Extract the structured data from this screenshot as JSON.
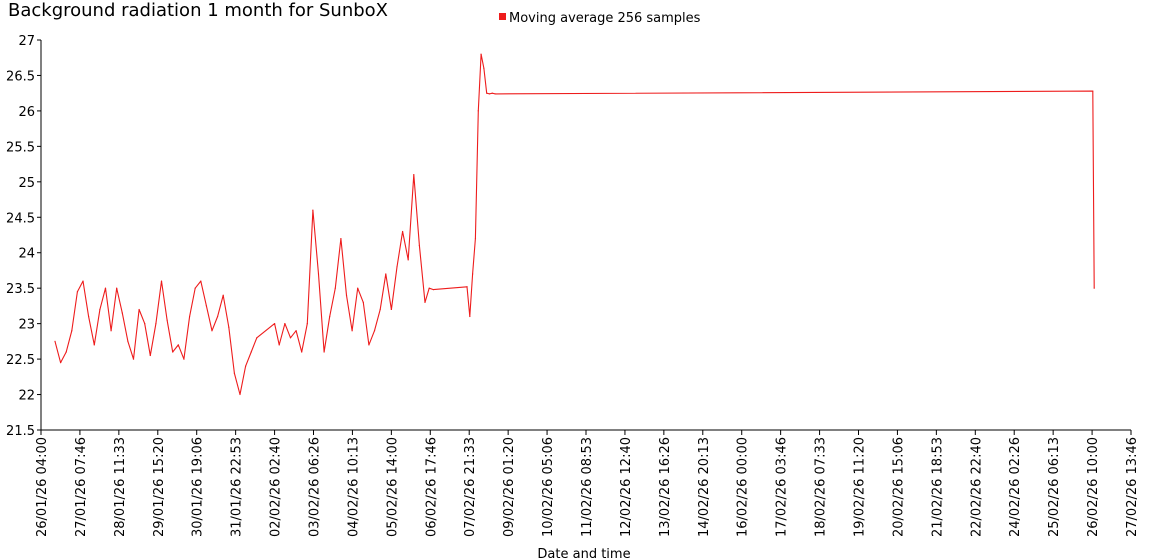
{
  "chart_data": {
    "type": "line",
    "title": "Background radiation 1 month for SunboX",
    "xlabel": "Date and time",
    "ylabel": "",
    "ylim": [
      21.5,
      27
    ],
    "yticks": [
      "21.5",
      "22",
      "22.5",
      "23",
      "23.5",
      "24",
      "24.5",
      "25",
      "25.5",
      "26",
      "26.5",
      "27"
    ],
    "xticks": [
      "26/01/26 04:00",
      "27/01/26 07:46",
      "28/01/26 11:33",
      "29/01/26 15:20",
      "30/01/26 19:06",
      "31/01/26 22:53",
      "02/02/26 02:40",
      "03/02/26 06:26",
      "04/02/26 10:13",
      "05/02/26 14:00",
      "06/02/26 17:46",
      "07/02/26 21:33",
      "09/02/26 01:20",
      "10/02/26 05:06",
      "11/02/26 08:53",
      "12/02/26 12:40",
      "13/02/26 16:26",
      "14/02/26 20:13",
      "16/02/26 00:00",
      "17/02/26 03:46",
      "18/02/26 07:33",
      "19/02/26 11:20",
      "20/02/26 15:06",
      "21/02/26 18:53",
      "22/02/26 22:40",
      "24/02/26 02:26",
      "25/02/26 06:13",
      "26/02/26 10:00",
      "27/02/26 13:46"
    ],
    "legend_position": "top",
    "grid": false,
    "series": [
      {
        "name": "Moving average 256 samples",
        "color": "#ee1c1c",
        "x": [
          "26/01/26 14:00",
          "26/01/26 18:00",
          "26/01/26 22:00",
          "27/01/26 02:00",
          "27/01/26 06:00",
          "27/01/26 10:00",
          "27/01/26 14:00",
          "27/01/26 18:00",
          "27/01/26 22:00",
          "28/01/26 02:00",
          "28/01/26 06:00",
          "28/01/26 10:00",
          "28/01/26 14:00",
          "28/01/26 18:00",
          "28/01/26 22:00",
          "29/01/26 02:00",
          "29/01/26 06:00",
          "29/01/26 10:00",
          "29/01/26 14:00",
          "29/01/26 18:00",
          "29/01/26 22:00",
          "30/01/26 02:00",
          "30/01/26 06:00",
          "30/01/26 10:00",
          "30/01/26 14:00",
          "30/01/26 18:00",
          "30/01/26 22:00",
          "31/01/26 02:00",
          "31/01/26 06:00",
          "31/01/26 10:00",
          "31/01/26 14:00",
          "31/01/26 18:00",
          "31/01/26 22:00",
          "01/02/26 02:00",
          "01/02/26 06:00",
          "01/02/26 10:00",
          "01/02/26 14:00",
          "02/02/26 02:40",
          "02/02/26 06:00",
          "02/02/26 10:00",
          "02/02/26 14:00",
          "02/02/26 18:00",
          "02/02/26 22:00",
          "03/02/26 02:00",
          "03/02/26 06:00",
          "03/02/26 10:00",
          "03/02/26 14:00",
          "03/02/26 18:00",
          "03/02/26 22:00",
          "04/02/26 02:00",
          "04/02/26 06:00",
          "04/02/26 10:00",
          "04/02/26 14:00",
          "04/02/26 18:00",
          "04/02/26 22:00",
          "05/02/26 02:00",
          "05/02/26 06:00",
          "05/02/26 10:00",
          "05/02/26 14:00",
          "05/02/26 18:00",
          "05/02/26 22:00",
          "06/02/26 02:00",
          "06/02/26 06:00",
          "06/02/26 10:00",
          "06/02/26 14:00",
          "06/02/26 17:00",
          "06/02/26 20:00",
          "07/02/26 20:00",
          "07/02/26 22:00",
          "08/02/26 00:00",
          "08/02/26 02:00",
          "08/02/26 04:00",
          "08/02/26 06:00",
          "08/02/26 08:00",
          "08/02/26 10:00",
          "08/02/26 12:00",
          "08/02/26 14:00",
          "08/02/26 16:00",
          "26/02/26 10:30",
          "26/02/26 11:30"
        ],
        "y": [
          22.75,
          22.45,
          22.6,
          22.9,
          23.45,
          23.6,
          23.1,
          22.7,
          23.2,
          23.5,
          22.9,
          23.5,
          23.15,
          22.75,
          22.5,
          23.2,
          23.0,
          22.55,
          23.0,
          23.6,
          23.05,
          22.6,
          22.7,
          22.5,
          23.1,
          23.5,
          23.6,
          23.25,
          22.9,
          23.1,
          23.4,
          22.95,
          22.3,
          22.0,
          22.4,
          22.6,
          22.8,
          23.0,
          22.7,
          23.0,
          22.8,
          22.9,
          22.6,
          23.0,
          24.6,
          23.7,
          22.6,
          23.1,
          23.5,
          24.2,
          23.4,
          22.9,
          23.5,
          23.3,
          22.7,
          22.9,
          23.2,
          23.7,
          23.2,
          23.8,
          24.3,
          23.9,
          25.1,
          24.1,
          23.3,
          23.5,
          23.48,
          23.52,
          23.1,
          23.7,
          24.2,
          26.0,
          26.8,
          26.6,
          26.25,
          26.24,
          26.25,
          26.24,
          26.28,
          23.5
        ]
      }
    ]
  }
}
